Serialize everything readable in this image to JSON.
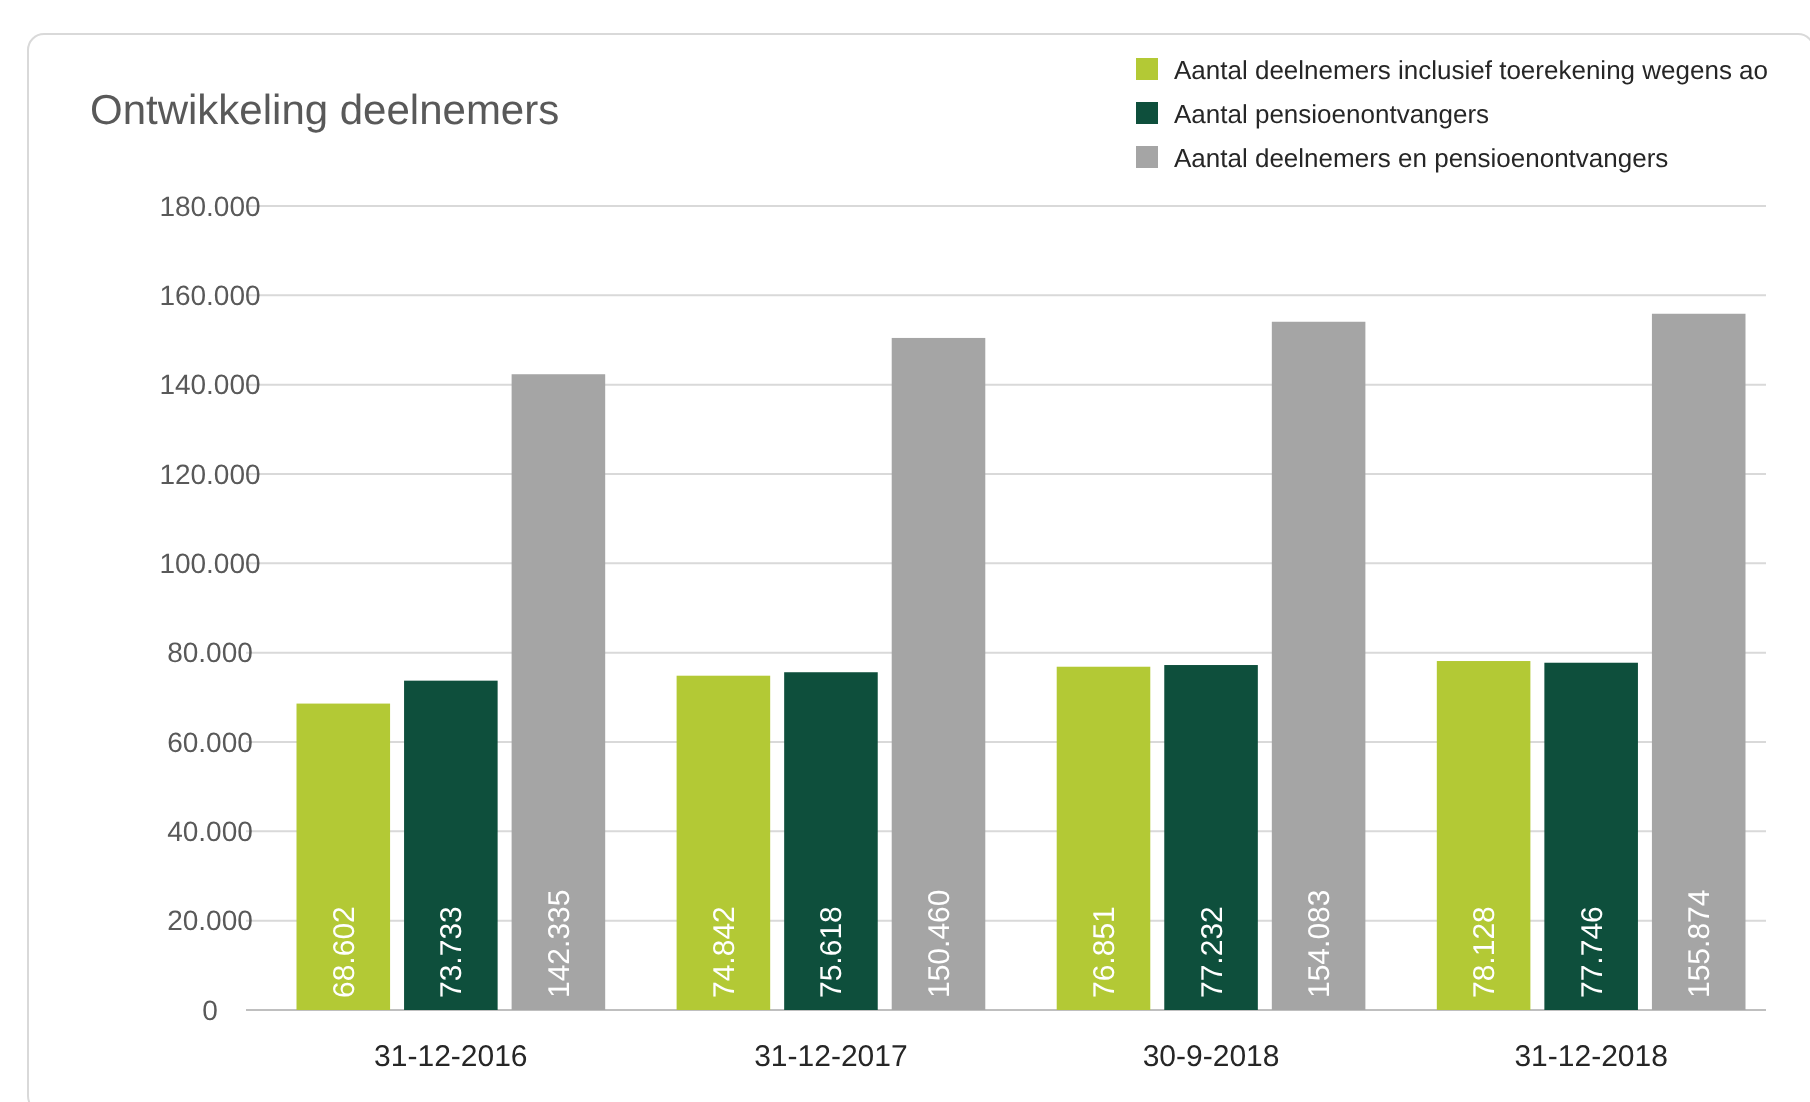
{
  "chart_data": {
    "type": "bar",
    "title": "Ontwikkeling deelnemers",
    "categories": [
      "31-12-2016",
      "31-12-2017",
      "30-9-2018",
      "31-12-2018"
    ],
    "series": [
      {
        "name": "Aantal deelnemers inclusief toerekening wegens ao",
        "color": "#b3c935",
        "values": [
          68602,
          74842,
          76851,
          78128
        ],
        "value_labels": [
          "68.602",
          "74.842",
          "76.851",
          "78.128"
        ]
      },
      {
        "name": "Aantal pensioenontvangers",
        "color": "#0e4f3c",
        "values": [
          73733,
          75618,
          77232,
          77746
        ],
        "value_labels": [
          "73.733",
          "75.618",
          "77.232",
          "77.746"
        ]
      },
      {
        "name": "Aantal deelnemers en pensioenontvangers",
        "color": "#a5a5a5",
        "values": [
          142335,
          150460,
          154083,
          155874
        ],
        "value_labels": [
          "142.335",
          "150.460",
          "154.083",
          "155.874"
        ]
      }
    ],
    "ylim": [
      0,
      180000
    ],
    "yticks": [
      0,
      {
        "value": 20000,
        "label": "20.000"
      },
      {
        "value": 40000,
        "label": "40.000"
      },
      {
        "value": 60000,
        "label": "60.000"
      },
      {
        "value": 80000,
        "label": "80.000"
      },
      {
        "value": 100000,
        "label": "100.000"
      },
      {
        "value": 120000,
        "label": "120.000"
      },
      {
        "value": 140000,
        "label": "140.000"
      },
      {
        "value": 160000,
        "label": "160.000"
      },
      {
        "value": 180000,
        "label": "180.000"
      }
    ],
    "grid": "y",
    "legend": "top right"
  }
}
